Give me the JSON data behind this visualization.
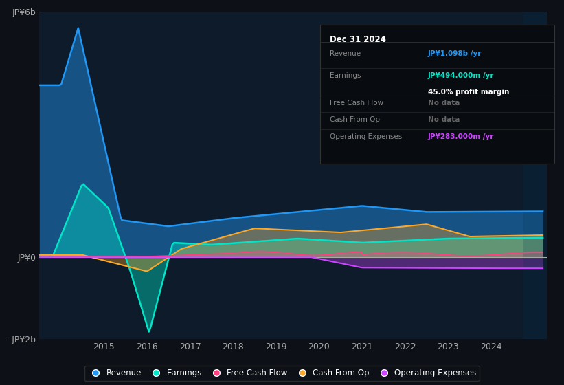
{
  "bg_color": "#0d1117",
  "chart_bg": "#0d1b2a",
  "title": "Dec 31 2024",
  "ylim": [
    -2000000000,
    6000000000
  ],
  "yticks": [
    -2000000000,
    0,
    6000000000
  ],
  "ytick_labels": [
    "-JP¥2b",
    "JP¥0",
    "JP¥6b"
  ],
  "xmin": 2013.5,
  "xmax": 2025.3,
  "xticks": [
    2015,
    2016,
    2017,
    2018,
    2019,
    2020,
    2021,
    2022,
    2023,
    2024
  ],
  "grid_color": "#2a3a4a",
  "zero_line_color": "#aaaaaa",
  "revenue_color": "#2196f3",
  "earnings_color": "#00e5c8",
  "fcf_color": "#ff4081",
  "cashfromop_color": "#ffa726",
  "opex_color": "#cc44ff",
  "legend": [
    {
      "label": "Revenue",
      "color": "#2196f3"
    },
    {
      "label": "Earnings",
      "color": "#00e5c8"
    },
    {
      "label": "Free Cash Flow",
      "color": "#ff4081"
    },
    {
      "label": "Cash From Op",
      "color": "#ffa726"
    },
    {
      "label": "Operating Expenses",
      "color": "#cc44ff"
    }
  ],
  "info_title": "Dec 31 2024",
  "info_rows": [
    {
      "label": "Revenue",
      "value": "JP¥1.098b /yr",
      "val_color": "#2196f3",
      "sub": null
    },
    {
      "label": "Earnings",
      "value": "JP¥494.000m /yr",
      "val_color": "#00e5c8",
      "sub": "45.0% profit margin"
    },
    {
      "label": "Free Cash Flow",
      "value": "No data",
      "val_color": "#666666",
      "sub": null
    },
    {
      "label": "Cash From Op",
      "value": "No data",
      "val_color": "#666666",
      "sub": null
    },
    {
      "label": "Operating Expenses",
      "value": "JP¥283.000m /yr",
      "val_color": "#cc44ff",
      "sub": null
    }
  ]
}
